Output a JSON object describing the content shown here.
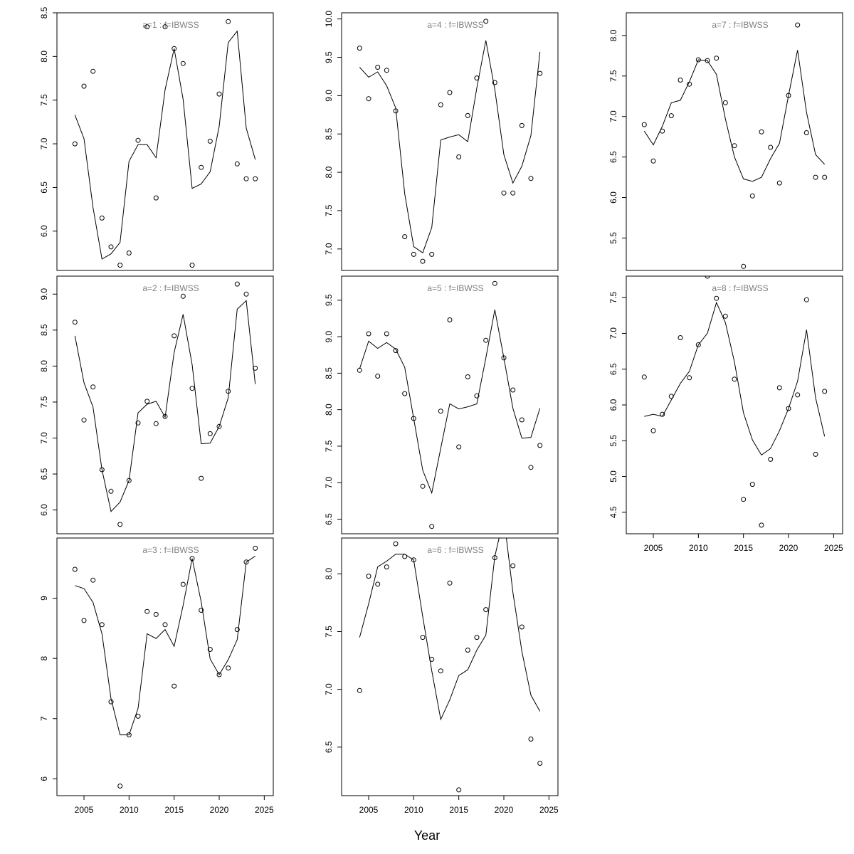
{
  "figure": {
    "xlabel": "Year",
    "colors": {
      "title": "#808080",
      "line": "#000000",
      "points": "#000000"
    }
  },
  "chart_data": [
    {
      "type": "line",
      "title": "a=1 : f=IBWSS",
      "x": [
        2004,
        2005,
        2006,
        2007,
        2008,
        2009,
        2010,
        2011,
        2012,
        2013,
        2014,
        2015,
        2016,
        2017,
        2018,
        2019,
        2020,
        2021,
        2022,
        2023,
        2024
      ],
      "xlim": [
        2002,
        2026
      ],
      "ylim": [
        5.55,
        8.5
      ],
      "yticks": [
        "6.0",
        "6.5",
        "7.0",
        "7.5",
        "8.0",
        "8.5"
      ],
      "xticks": [],
      "series": [
        {
          "values": [
            7.33,
            7.06,
            6.27,
            5.68,
            5.74,
            5.87,
            6.8,
            6.99,
            6.99,
            6.84,
            7.62,
            8.09,
            7.51,
            6.49,
            6.54,
            6.68,
            7.2,
            8.16,
            8.29,
            7.18,
            6.82
          ]
        },
        {
          "values": [
            7.0,
            7.66,
            7.83,
            6.15,
            5.82,
            5.61,
            5.75,
            7.04,
            8.34,
            6.38,
            8.34,
            8.09,
            7.92,
            5.61,
            6.73,
            7.03,
            7.57,
            8.4,
            6.77,
            6.6,
            6.6
          ]
        }
      ]
    },
    {
      "type": "line",
      "title": "a=2 : f=IBWSS",
      "x": [
        2004,
        2005,
        2006,
        2007,
        2008,
        2009,
        2010,
        2011,
        2012,
        2013,
        2014,
        2015,
        2016,
        2017,
        2018,
        2019,
        2020,
        2021,
        2022,
        2023,
        2024
      ],
      "xlim": [
        2002,
        2026
      ],
      "ylim": [
        5.67,
        9.25
      ],
      "yticks": [
        "6.0",
        "6.5",
        "7.0",
        "7.5",
        "8.0",
        "8.5",
        "9.0"
      ],
      "xticks": [],
      "series": [
        {
          "values": [
            8.42,
            7.77,
            7.43,
            6.56,
            5.98,
            6.11,
            6.41,
            7.35,
            7.47,
            7.51,
            7.29,
            8.19,
            8.72,
            8.02,
            6.92,
            6.93,
            7.16,
            7.56,
            8.79,
            8.91,
            7.75
          ]
        },
        {
          "values": [
            8.61,
            7.25,
            7.71,
            6.56,
            6.26,
            5.8,
            6.41,
            7.21,
            7.51,
            7.2,
            7.3,
            8.42,
            8.97,
            7.69,
            6.44,
            7.06,
            7.16,
            7.65,
            9.14,
            9.0,
            7.97
          ]
        }
      ]
    },
    {
      "type": "line",
      "title": "a=3 : f=IBWSS",
      "x": [
        2004,
        2005,
        2006,
        2007,
        2008,
        2009,
        2010,
        2011,
        2012,
        2013,
        2014,
        2015,
        2016,
        2017,
        2018,
        2019,
        2020,
        2021,
        2022,
        2023,
        2024
      ],
      "xlim": [
        2002,
        2026
      ],
      "ylim": [
        5.72,
        10.0
      ],
      "yticks": [
        "6",
        "7",
        "8",
        "9"
      ],
      "xticks": [
        "2005",
        "2010",
        "2015",
        "2020",
        "2025"
      ],
      "series": [
        {
          "values": [
            9.21,
            9.16,
            8.93,
            8.41,
            7.33,
            6.73,
            6.73,
            7.17,
            8.41,
            8.33,
            8.48,
            8.2,
            8.88,
            9.66,
            8.94,
            7.99,
            7.73,
            7.98,
            8.31,
            9.6,
            9.7
          ]
        },
        {
          "values": [
            9.48,
            8.63,
            9.3,
            8.56,
            7.28,
            5.88,
            6.73,
            7.04,
            8.78,
            8.73,
            8.56,
            7.54,
            9.23,
            9.66,
            8.8,
            8.15,
            7.73,
            7.84,
            8.48,
            9.6,
            9.83
          ]
        }
      ]
    },
    {
      "type": "line",
      "title": "a=4 : f=IBWSS",
      "x": [
        2004,
        2005,
        2006,
        2007,
        2008,
        2009,
        2010,
        2011,
        2012,
        2013,
        2014,
        2015,
        2016,
        2017,
        2018,
        2019,
        2020,
        2021,
        2022,
        2023,
        2024
      ],
      "xlim": [
        2002,
        2026
      ],
      "ylim": [
        6.72,
        10.08
      ],
      "yticks": [
        "7.0",
        "7.5",
        "8.0",
        "8.5",
        "9.0",
        "9.5",
        "10.0"
      ],
      "xticks": [],
      "series": [
        {
          "values": [
            9.37,
            9.24,
            9.31,
            9.13,
            8.84,
            7.72,
            7.03,
            6.95,
            7.28,
            8.42,
            8.46,
            8.49,
            8.4,
            9.1,
            9.72,
            9.08,
            8.23,
            7.86,
            8.08,
            8.48,
            9.57
          ]
        },
        {
          "values": [
            9.62,
            8.96,
            9.37,
            9.33,
            8.8,
            7.16,
            6.93,
            6.84,
            6.93,
            8.88,
            9.04,
            8.2,
            8.74,
            9.23,
            9.97,
            9.17,
            7.73,
            7.73,
            8.61,
            7.92,
            9.29
          ]
        }
      ]
    },
    {
      "type": "line",
      "title": "a=5 : f=IBWSS",
      "x": [
        2004,
        2005,
        2006,
        2007,
        2008,
        2009,
        2010,
        2011,
        2012,
        2013,
        2014,
        2015,
        2016,
        2017,
        2018,
        2019,
        2020,
        2021,
        2022,
        2023,
        2024
      ],
      "xlim": [
        2002,
        2026
      ],
      "ylim": [
        6.3,
        9.83
      ],
      "yticks": [
        "6.5",
        "7.0",
        "7.5",
        "8.0",
        "8.5",
        "9.0",
        "9.5"
      ],
      "xticks": [],
      "series": [
        {
          "values": [
            8.56,
            8.94,
            8.84,
            8.92,
            8.83,
            8.58,
            7.88,
            7.17,
            6.86,
            7.47,
            8.08,
            8.01,
            8.04,
            8.08,
            8.71,
            9.37,
            8.71,
            8.02,
            7.61,
            7.62,
            8.02
          ]
        },
        {
          "values": [
            8.54,
            9.04,
            8.46,
            9.04,
            8.81,
            8.22,
            7.88,
            6.95,
            6.4,
            7.98,
            9.23,
            7.49,
            8.45,
            8.19,
            8.95,
            9.73,
            8.71,
            8.27,
            7.86,
            7.21,
            7.51
          ]
        }
      ]
    },
    {
      "type": "line",
      "title": "a=6 : f=IBWSS",
      "x": [
        2004,
        2005,
        2006,
        2007,
        2008,
        2009,
        2010,
        2011,
        2012,
        2013,
        2014,
        2015,
        2016,
        2017,
        2018,
        2019,
        2020,
        2021,
        2022,
        2023,
        2024
      ],
      "xlim": [
        2002,
        2026
      ],
      "ylim": [
        6.08,
        8.31
      ],
      "yticks": [
        "6.5",
        "7.0",
        "7.5",
        "8.0"
      ],
      "xticks": [
        "2005",
        "2010",
        "2015",
        "2020",
        "2025"
      ],
      "series": [
        {
          "values": [
            7.45,
            7.74,
            8.06,
            8.11,
            8.17,
            8.17,
            8.12,
            7.63,
            7.16,
            6.74,
            6.91,
            7.12,
            7.17,
            7.34,
            7.47,
            8.15,
            8.49,
            7.84,
            7.33,
            6.95,
            6.81
          ]
        },
        {
          "values": [
            6.99,
            7.98,
            7.91,
            8.06,
            8.26,
            8.15,
            8.12,
            7.45,
            7.26,
            7.16,
            7.92,
            6.13,
            7.34,
            7.45,
            7.69,
            8.14,
            8.49,
            8.07,
            7.54,
            6.57,
            6.36
          ]
        }
      ]
    },
    {
      "type": "line",
      "title": "a=7 : f=IBWSS",
      "x": [
        2004,
        2005,
        2006,
        2007,
        2008,
        2009,
        2010,
        2011,
        2012,
        2013,
        2014,
        2015,
        2016,
        2017,
        2018,
        2019,
        2020,
        2021,
        2022,
        2023,
        2024
      ],
      "xlim": [
        2002,
        2026
      ],
      "ylim": [
        5.1,
        8.28
      ],
      "yticks": [
        "5.5",
        "6.0",
        "6.5",
        "7.0",
        "7.5",
        "8.0"
      ],
      "xticks": [],
      "series": [
        {
          "values": [
            6.82,
            6.65,
            6.88,
            7.17,
            7.2,
            7.43,
            7.7,
            7.69,
            7.52,
            6.97,
            6.5,
            6.23,
            6.2,
            6.25,
            6.48,
            6.67,
            7.26,
            7.82,
            7.05,
            6.53,
            6.41
          ]
        },
        {
          "values": [
            6.9,
            6.45,
            6.82,
            7.01,
            7.45,
            7.4,
            7.7,
            7.69,
            7.72,
            7.17,
            6.64,
            5.15,
            6.02,
            6.81,
            6.62,
            6.18,
            7.26,
            8.13,
            6.8,
            6.25,
            6.25
          ]
        }
      ]
    },
    {
      "type": "line",
      "title": "a=8 : f=IBWSS",
      "x": [
        2004,
        2005,
        2006,
        2007,
        2008,
        2009,
        2010,
        2011,
        2012,
        2013,
        2014,
        2015,
        2016,
        2017,
        2018,
        2019,
        2020,
        2021,
        2022,
        2023,
        2024
      ],
      "xlim": [
        2002,
        2026
      ],
      "ylim": [
        4.2,
        7.8
      ],
      "yticks": [
        "4.5",
        "5.0",
        "5.5",
        "6.0",
        "6.5",
        "7.0",
        "7.5"
      ],
      "xticks": [
        "2005",
        "2010",
        "2015",
        "2020",
        "2025"
      ],
      "series": [
        {
          "values": [
            5.84,
            5.87,
            5.84,
            6.07,
            6.3,
            6.47,
            6.84,
            7.0,
            7.43,
            7.15,
            6.6,
            5.89,
            5.51,
            5.3,
            5.39,
            5.64,
            5.95,
            6.33,
            7.05,
            6.1,
            5.56
          ]
        },
        {
          "values": [
            6.39,
            5.64,
            5.87,
            6.12,
            6.94,
            6.38,
            6.84,
            7.8,
            7.49,
            7.24,
            6.36,
            4.68,
            4.89,
            4.32,
            5.24,
            6.24,
            5.95,
            6.14,
            7.47,
            5.31,
            6.19
          ]
        }
      ]
    }
  ]
}
